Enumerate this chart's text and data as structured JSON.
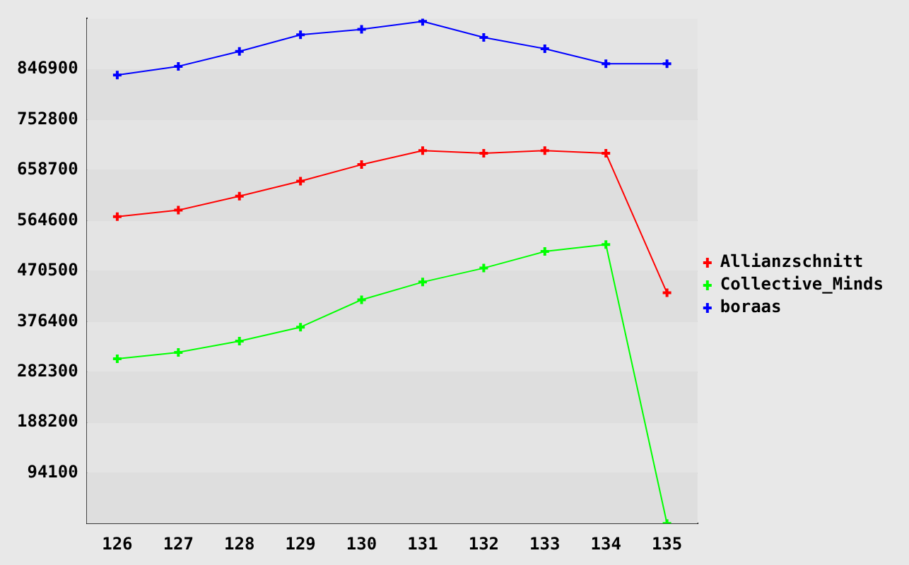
{
  "chart_data": {
    "type": "line",
    "categories": [
      "126",
      "127",
      "128",
      "129",
      "130",
      "131",
      "132",
      "133",
      "134",
      "135"
    ],
    "series": [
      {
        "name": "Allianzschnitt",
        "color": "#ff0000",
        "values": [
          572000,
          584000,
          610000,
          638000,
          669000,
          695000,
          690000,
          695000,
          690000,
          430000
        ]
      },
      {
        "name": "Collective_Minds",
        "color": "#00ff00",
        "values": [
          307000,
          319000,
          340000,
          366000,
          417000,
          450000,
          476000,
          507000,
          520000,
          0
        ]
      },
      {
        "name": "boraas",
        "color": "#0000ff",
        "values": [
          836000,
          852000,
          880000,
          911000,
          921000,
          936000,
          906000,
          885000,
          857000,
          857000
        ]
      }
    ],
    "ylim": [
      0,
      941000
    ],
    "yticks": [
      {
        "value": 0,
        "label": null
      },
      94100,
      188200,
      282300,
      376400,
      470500,
      564600,
      658700,
      752800,
      846900
    ],
    "grid": "y",
    "legend": "right",
    "marker": "cross",
    "line_style": "solid"
  }
}
